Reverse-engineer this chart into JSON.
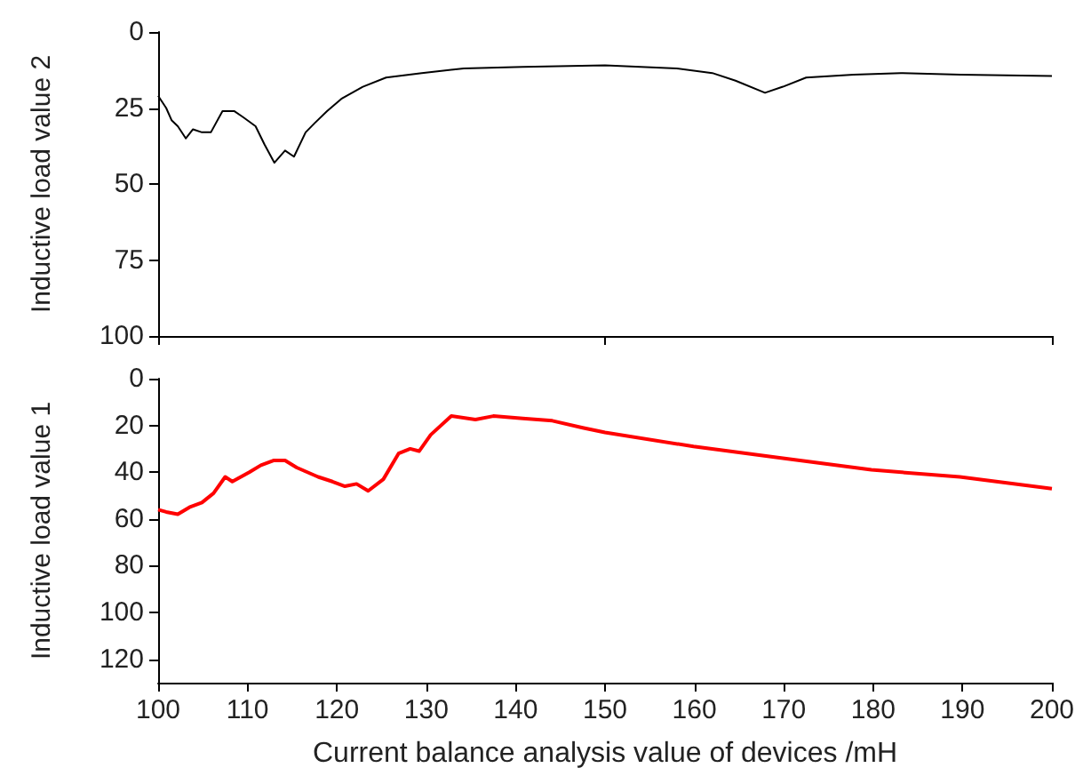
{
  "chart_data": [
    {
      "type": "line",
      "ylabel": "Inductive load value 2",
      "xlim": [
        100,
        200
      ],
      "xticks": [
        {
          "value": 100,
          "label": null
        },
        {
          "value": 150,
          "label": null
        },
        {
          "value": 200,
          "label": null
        }
      ],
      "ylim": [
        100,
        0
      ],
      "yticks": [
        0,
        25,
        50,
        75,
        100
      ],
      "tick_labels": "y",
      "line_style": "solid",
      "series": [
        {
          "color": "#000000",
          "x": [
            100,
            100.9,
            101.5,
            102.2,
            103.1,
            103.9,
            104.9,
            105.9,
            107.2,
            108.5,
            109.5,
            110.9,
            111.9,
            113,
            114.2,
            115.2,
            116.5,
            117.5,
            118.9,
            120.5,
            122.9,
            125.5,
            129.5,
            134.2,
            140.8,
            150,
            158,
            162,
            164.6,
            167.9,
            169.9,
            172.5,
            177.8,
            183.1,
            189.8,
            200
          ],
          "values": [
            21,
            25,
            29,
            31,
            35,
            32,
            33,
            33,
            26,
            26,
            28,
            31,
            37,
            43,
            39,
            41,
            33,
            30,
            26,
            22,
            18,
            15,
            13.5,
            12,
            11.5,
            11,
            12,
            13.5,
            16,
            20,
            18,
            15,
            14,
            13.5,
            14,
            14.5
          ]
        }
      ]
    },
    {
      "type": "line",
      "ylabel": "Inductive load value 1",
      "xlabel": "Current balance analysis value of devices /mH",
      "xlim": [
        100,
        200
      ],
      "xticks": [
        100,
        110,
        120,
        130,
        140,
        150,
        160,
        170,
        180,
        190,
        200
      ],
      "ylim": [
        130,
        0
      ],
      "yticks": [
        0,
        20,
        40,
        60,
        80,
        100,
        120
      ],
      "line_style": "solid",
      "series": [
        {
          "color": "#ff0000",
          "x": [
            100,
            100.9,
            102.2,
            103.5,
            104.9,
            106.2,
            107.5,
            108.3,
            110.2,
            111.5,
            112.9,
            114.2,
            115.5,
            117.9,
            119.5,
            120.9,
            122.2,
            123.5,
            125.2,
            126.9,
            128.2,
            129.2,
            130.5,
            132.8,
            135.5,
            137.5,
            140.8,
            144.1,
            147.5,
            150,
            159.9,
            169.9,
            179.8,
            189.7,
            200
          ],
          "values": [
            56,
            57,
            58,
            55,
            53,
            49,
            42,
            44,
            40,
            37,
            35,
            35,
            38,
            42,
            44,
            46,
            45,
            48,
            43,
            32,
            30,
            31,
            24,
            16,
            17.5,
            16,
            17,
            18,
            21,
            23,
            29,
            34,
            39,
            42,
            47
          ]
        }
      ]
    }
  ]
}
